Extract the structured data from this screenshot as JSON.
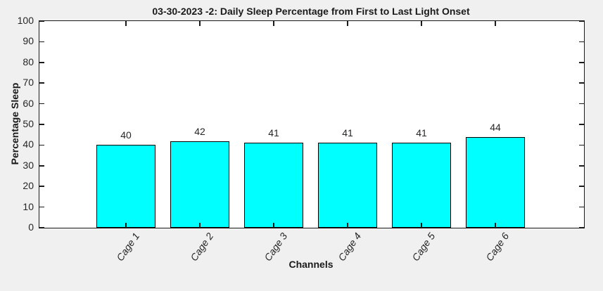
{
  "figure": {
    "background_color": "#f0f0f0",
    "plot_background_color": "#ffffff",
    "axis_color": "#1a1a1a",
    "text_color": "#262626"
  },
  "chart_data": {
    "type": "bar",
    "title": "03-30-2023 -2: Daily Sleep Percentage from First to Last Light Onset",
    "categories": [
      "Cage 1",
      "Cage 2",
      "Cage 3",
      "Cage 4",
      "Cage 5",
      "Cage 6"
    ],
    "values": [
      40,
      42,
      41,
      41,
      41,
      44
    ],
    "data_labels": [
      "40",
      "42",
      "41",
      "41",
      "41",
      "44"
    ],
    "xlabel": "Channels",
    "ylabel": "Percentage Sleep",
    "ylim": [
      0,
      100
    ],
    "yticks": [
      0,
      10,
      20,
      30,
      40,
      50,
      60,
      70,
      80,
      90,
      100
    ],
    "grid": false,
    "legend": false,
    "bar_color": "#00ffff",
    "bar_edge_color": "#000000"
  }
}
